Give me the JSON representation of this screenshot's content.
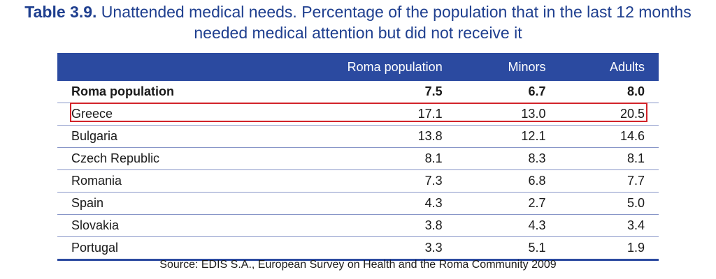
{
  "title": {
    "number": "Table 3.9.",
    "line1": "Unattended medical needs. Percentage of the population that in the last 12 months",
    "line2": "needed medical attention but did not receive it"
  },
  "table": {
    "columns": [
      "",
      "Roma population",
      "Minors",
      "Adults"
    ],
    "total": {
      "label": "Roma population",
      "values": [
        "7.5",
        "6.7",
        "8.0"
      ]
    },
    "rows": [
      {
        "label": "Greece",
        "values": [
          "17.1",
          "13.0",
          "20.5"
        ]
      },
      {
        "label": "Bulgaria",
        "values": [
          "13.8",
          "12.1",
          "14.6"
        ]
      },
      {
        "label": "Czech Republic",
        "values": [
          "8.1",
          "8.3",
          "8.1"
        ]
      },
      {
        "label": "Romania",
        "values": [
          "7.3",
          "6.8",
          "7.7"
        ]
      },
      {
        "label": "Spain",
        "values": [
          "4.3",
          "2.7",
          "5.0"
        ]
      },
      {
        "label": "Slovakia",
        "values": [
          "3.8",
          "4.3",
          "3.4"
        ]
      },
      {
        "label": "Portugal",
        "values": [
          "3.3",
          "5.1",
          "1.9"
        ]
      }
    ]
  },
  "source": "Source: EDIS S.A., European Survey on Health and the Roma Community 2009",
  "colors": {
    "header": "#2b4aa0",
    "title": "#1f3f8f",
    "highlight": "#d2232a"
  }
}
